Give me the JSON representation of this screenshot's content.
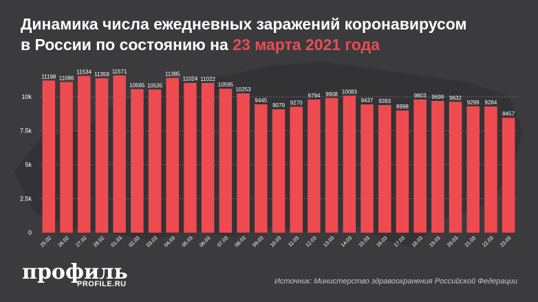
{
  "title": {
    "line1": "Динамика числа ежедневных заражений коронавирусом",
    "line2_prefix": "в России по состоянию на ",
    "line2_accent": "23 марта 2021 года"
  },
  "brand": {
    "logo": "профиль",
    "site": "PROFILE.RU"
  },
  "source": "Источник: Министерство здравоохранения Российской Федерации",
  "colors": {
    "background": "#3b3b3e",
    "bar": "#ee4b50",
    "accent": "#ee4b50",
    "text": "#ffffff"
  },
  "chart_data": {
    "type": "bar",
    "title": "Динамика числа ежедневных заражений коронавирусом в России по состоянию на 23 марта 2021 года",
    "xlabel": "",
    "ylabel": "",
    "ylim": [
      0,
      12000
    ],
    "yticks": [
      0,
      2500,
      5000,
      7500,
      10000
    ],
    "ytick_labels": [
      "0",
      "2.5k",
      "5k",
      "7.5k",
      "10k"
    ],
    "grid": "horizontal dotted",
    "categories": [
      "25.02",
      "26.02",
      "27.02",
      "28.02",
      "01.03",
      "02.03",
      "03.03",
      "04.03",
      "05.03",
      "06.03",
      "07.03",
      "08.03",
      "09.03",
      "10.03",
      "11.03",
      "12.03",
      "13.03",
      "14.03",
      "15.03",
      "16.03",
      "17.03",
      "18.03",
      "19.03",
      "20.03",
      "21.03",
      "22.03",
      "23.03"
    ],
    "values": [
      11198,
      11086,
      11534,
      11359,
      11571,
      10565,
      10535,
      11385,
      11024,
      11022,
      10595,
      10253,
      9445,
      9079,
      9270,
      9794,
      9908,
      10083,
      9437,
      9393,
      8998,
      9803,
      9699,
      9632,
      9299,
      9284,
      8457
    ]
  }
}
